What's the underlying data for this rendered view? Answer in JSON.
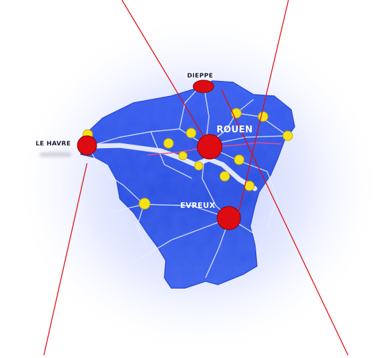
{
  "map": {
    "region_color": "#2f55e6",
    "halo_color": "#c7d2ff",
    "road_color": "#e9efff",
    "marker_major_color": "#dd0c12",
    "marker_minor_color": "#f3e21a",
    "pointer_line_color": "#e01010",
    "labels": {
      "dieppe": "DIEPPE",
      "rouen": "ROUEN",
      "le_havre": "LE HAVRE",
      "evreux": "EVREUX"
    }
  }
}
